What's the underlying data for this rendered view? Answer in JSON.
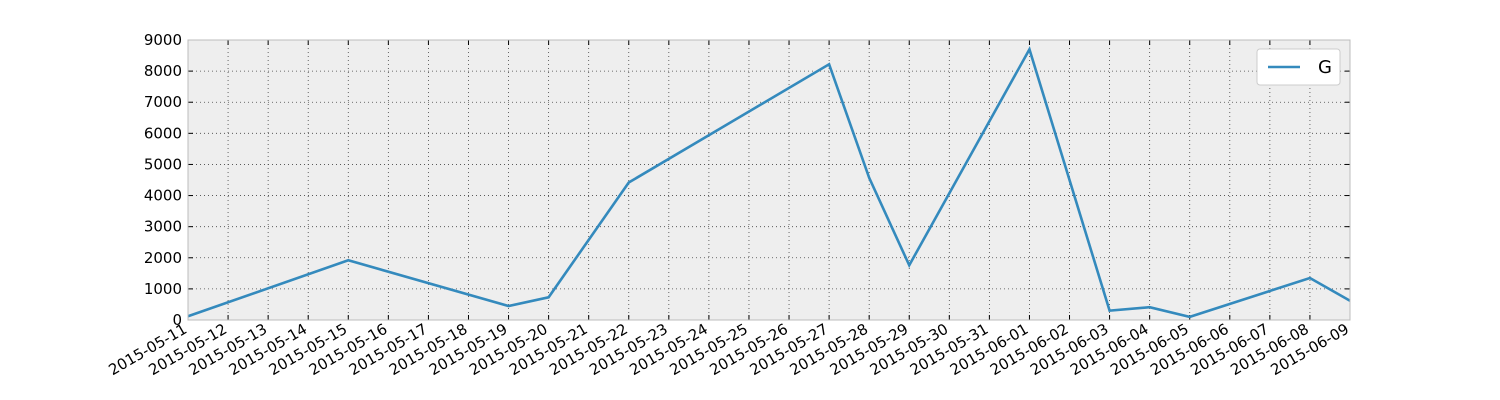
{
  "chart_data": {
    "type": "line",
    "title": "",
    "xlabel": "",
    "ylabel": "",
    "categories": [
      "2015-05-11",
      "2015-05-12",
      "2015-05-13",
      "2015-05-14",
      "2015-05-15",
      "2015-05-16",
      "2015-05-17",
      "2015-05-18",
      "2015-05-19",
      "2015-05-20",
      "2015-05-21",
      "2015-05-22",
      "2015-05-23",
      "2015-05-24",
      "2015-05-25",
      "2015-05-26",
      "2015-05-27",
      "2015-05-28",
      "2015-05-29",
      "2015-05-30",
      "2015-05-31",
      "2015-06-01",
      "2015-06-02",
      "2015-06-03",
      "2015-06-04",
      "2015-06-05",
      "2015-06-06",
      "2015-06-07",
      "2015-06-08",
      "2015-06-09"
    ],
    "series": [
      {
        "name": "G",
        "color": "#348abd",
        "points": [
          {
            "x": "2015-05-11",
            "y": 120
          },
          {
            "x": "2015-05-15",
            "y": 1920
          },
          {
            "x": "2015-05-19",
            "y": 450
          },
          {
            "x": "2015-05-20",
            "y": 730
          },
          {
            "x": "2015-05-22",
            "y": 4420
          },
          {
            "x": "2015-05-27",
            "y": 8220
          },
          {
            "x": "2015-05-28",
            "y": 4570
          },
          {
            "x": "2015-05-29",
            "y": 1760
          },
          {
            "x": "2015-06-01",
            "y": 8700
          },
          {
            "x": "2015-06-03",
            "y": 300
          },
          {
            "x": "2015-06-04",
            "y": 410
          },
          {
            "x": "2015-06-05",
            "y": 100
          },
          {
            "x": "2015-06-08",
            "y": 1350
          },
          {
            "x": "2015-06-09",
            "y": 620
          }
        ]
      }
    ],
    "ylim": [
      0,
      9000
    ],
    "yticks": [
      0,
      1000,
      2000,
      3000,
      4000,
      5000,
      6000,
      7000,
      8000,
      9000
    ],
    "grid": true,
    "legend_position": "top-right"
  }
}
